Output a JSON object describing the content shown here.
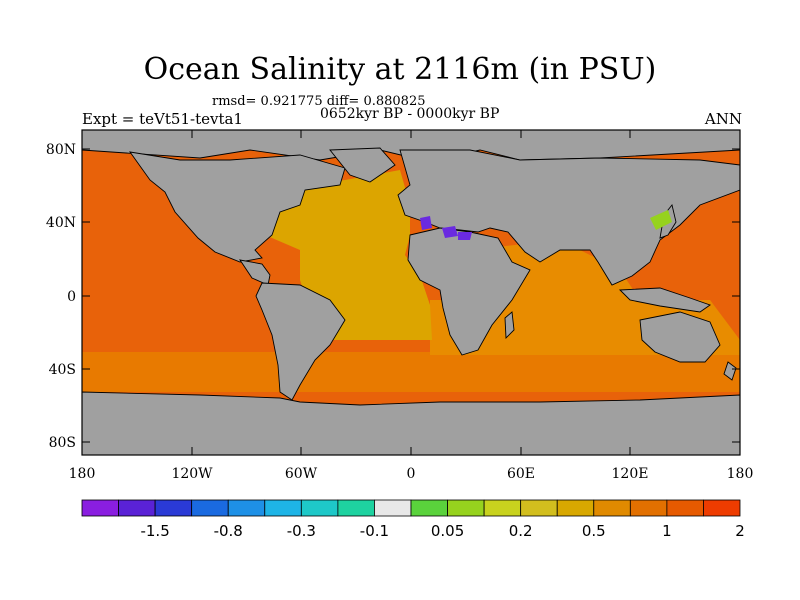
{
  "title": "Ocean Salinity at 2116m (in PSU)",
  "stats": "rmsd= 0.921775 diff= 0.880825",
  "time_range": "0652kyr BP - 0000kyr BP",
  "experiment": "Expt = teVt51-tevta1",
  "season": "ANN",
  "lat_ticks": [
    "80N",
    "40N",
    "0",
    "40S",
    "80S"
  ],
  "lon_ticks": [
    "180",
    "120W",
    "60W",
    "0",
    "60E",
    "120E",
    "180"
  ],
  "colorbar": {
    "colors": [
      "#8a1ee0",
      "#5a22d6",
      "#2a3ad6",
      "#1a6ae0",
      "#1e90e6",
      "#1eb4e6",
      "#1ec8c8",
      "#1ed2a0",
      "#e8e8e8",
      "#5ad23c",
      "#96d21e",
      "#c8d21e",
      "#d2be1e",
      "#d8a800",
      "#e08a00",
      "#e27000",
      "#e65a00",
      "#ee3c00"
    ],
    "labels": [
      "-1.5",
      "-0.8",
      "-0.3",
      "-0.1",
      "0.05",
      "0.2",
      "0.5",
      "1",
      "2"
    ]
  },
  "map_colors": {
    "land": "#a0a0a0",
    "pacific": "#e8620a",
    "atlantic": "#dca500",
    "southern_band": "#e87a00",
    "indian": "#e88c00",
    "positive_anomaly": "#96d21e",
    "negative_anomaly": "#6a2ae0"
  }
}
